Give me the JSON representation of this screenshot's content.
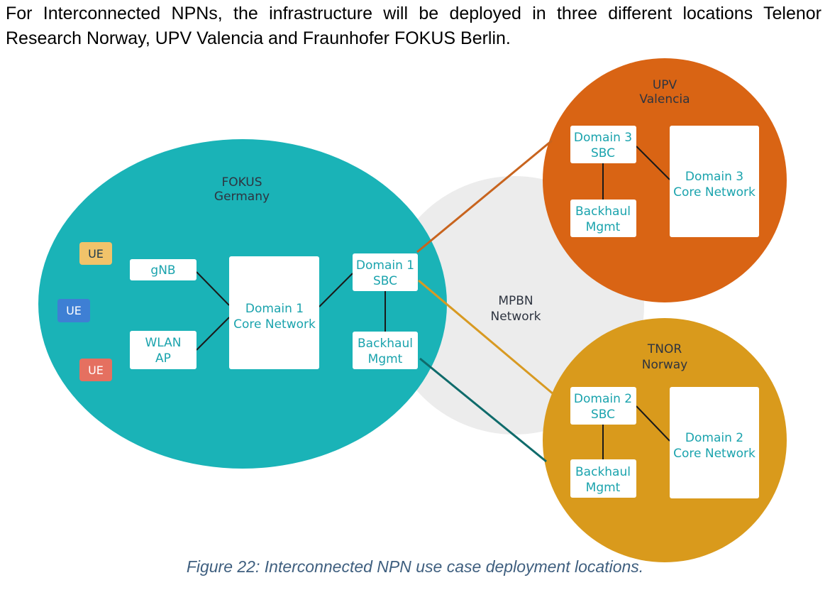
{
  "intro": {
    "text": "For Interconnected NPNs, the infrastructure will be deployed in three different locations Telenor Research Norway, UPV Valencia and Fraunhofer FOKUS Berlin."
  },
  "diagram": {
    "colors": {
      "fokus": "#1ab3b7",
      "upv": "#d96414",
      "tnor": "#d99a1c",
      "mpbn": "#ececec",
      "box": "#ffffff",
      "box_text": "#1aa3ad",
      "ue_yellow": "#f1c36a",
      "ue_blue": "#3e7fd4",
      "ue_red": "#e57060",
      "link_orange": "#c8641e",
      "link_gold": "#d89a22",
      "link_teal": "#0f6b6b",
      "link_internal": "#1a1a1a"
    },
    "mpbn": {
      "title_line1": "MPBN",
      "title_line2": "Network"
    },
    "fokus": {
      "title_line1": "FOKUS",
      "title_line2": "Germany",
      "gnb": "gNB",
      "wlan_line1": "WLAN",
      "wlan_line2": "AP",
      "core_line1": "Domain 1",
      "core_line2": "Core Network",
      "sbc_line1": "Domain 1",
      "sbc_line2": "SBC",
      "backhaul_line1": "Backhaul",
      "backhaul_line2": "Mgmt",
      "ue_1": "UE",
      "ue_2": "UE",
      "ue_3": "UE"
    },
    "upv": {
      "title_line1": "UPV",
      "title_line2": "Valencia",
      "sbc_line1": "Domain 3",
      "sbc_line2": "SBC",
      "backhaul_line1": "Backhaul",
      "backhaul_line2": "Mgmt",
      "core_line1": "Domain 3",
      "core_line2": "Core Network"
    },
    "tnor": {
      "title_line1": "TNOR",
      "title_line2": "Norway",
      "sbc_line1": "Domain 2",
      "sbc_line2": "SBC",
      "backhaul_line1": "Backhaul",
      "backhaul_line2": "Mgmt",
      "core_line1": "Domain 2",
      "core_line2": "Core Network"
    }
  },
  "caption": {
    "text": "Figure 22: Interconnected NPN use case deployment locations."
  }
}
